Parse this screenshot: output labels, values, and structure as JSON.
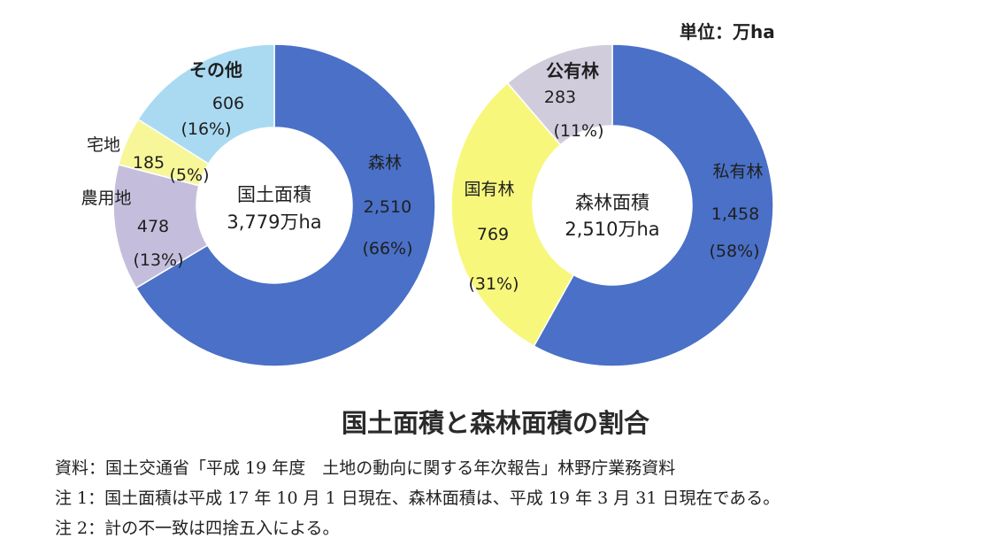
{
  "unit_label": "単位：万ha",
  "title": "国土面積と森林面積の割合",
  "notes": [
    "資料：国土交通省「平成 19 年度　土地の動向に関する年次報告」林野庁業務資料",
    "注 1：国土面積は平成 17 年 10 月 1 日現在、森林面積は、平成 19 年 3 月 31 日現在である。",
    "注 2：計の不一致は四捨五入による。"
  ],
  "chart_data": [
    {
      "type": "pie",
      "donut": true,
      "center_label": [
        "国土面積",
        "3,779万ha"
      ],
      "slices": [
        {
          "name": "森林",
          "value": 2510,
          "value_label": "2,510",
          "percent_label": "(66%)",
          "color": "#4a70c7"
        },
        {
          "name": "農用地",
          "value": 478,
          "value_label": "478",
          "percent_label": "(13%)",
          "color": "#c4bedc"
        },
        {
          "name": "宅地",
          "value": 185,
          "value_label": "185",
          "percent_label": "(5%)",
          "color": "#f7f79a"
        },
        {
          "name": "その他",
          "value": 606,
          "value_label": "606",
          "percent_label": "(16%)",
          "color": "#a9daf1"
        }
      ]
    },
    {
      "type": "pie",
      "donut": true,
      "center_label": [
        "森林面積",
        "2,510万ha"
      ],
      "slices": [
        {
          "name": "私有林",
          "value": 1458,
          "value_label": "1,458",
          "percent_label": "(58%)",
          "color": "#4a70c7"
        },
        {
          "name": "国有林",
          "value": 769,
          "value_label": "769",
          "percent_label": "(31%)",
          "color": "#f7f77c"
        },
        {
          "name": "公有林",
          "value": 283,
          "value_label": "283",
          "percent_label": "(11%)",
          "color": "#d0ccdc"
        }
      ]
    }
  ]
}
